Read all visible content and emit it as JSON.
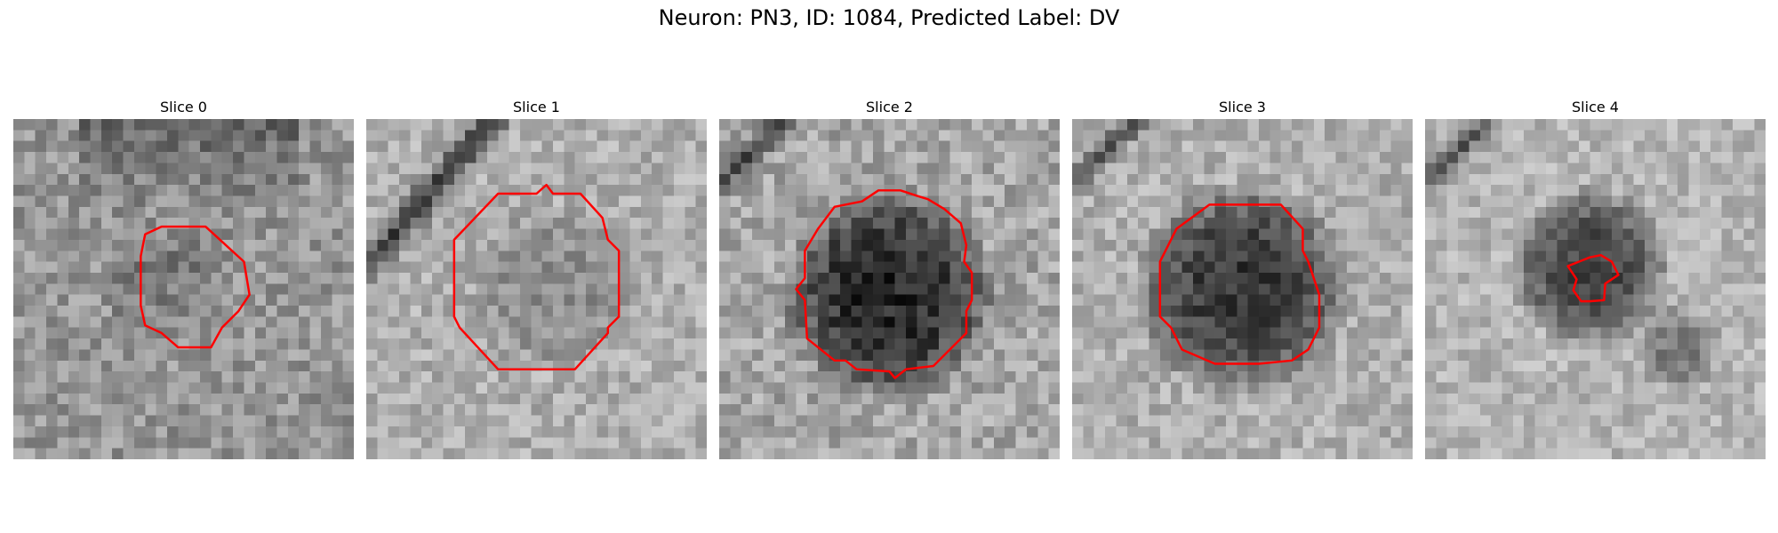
{
  "figure": {
    "title": "Neuron: PN3, ID: 1084, Predicted Label: DV"
  },
  "panels": [
    {
      "title": "Slice 0"
    },
    {
      "title": "Slice 1"
    },
    {
      "title": "Slice 2"
    },
    {
      "title": "Slice 3"
    },
    {
      "title": "Slice 4"
    }
  ],
  "colors": {
    "contour": "#ff0000",
    "background": "#ffffff"
  }
}
